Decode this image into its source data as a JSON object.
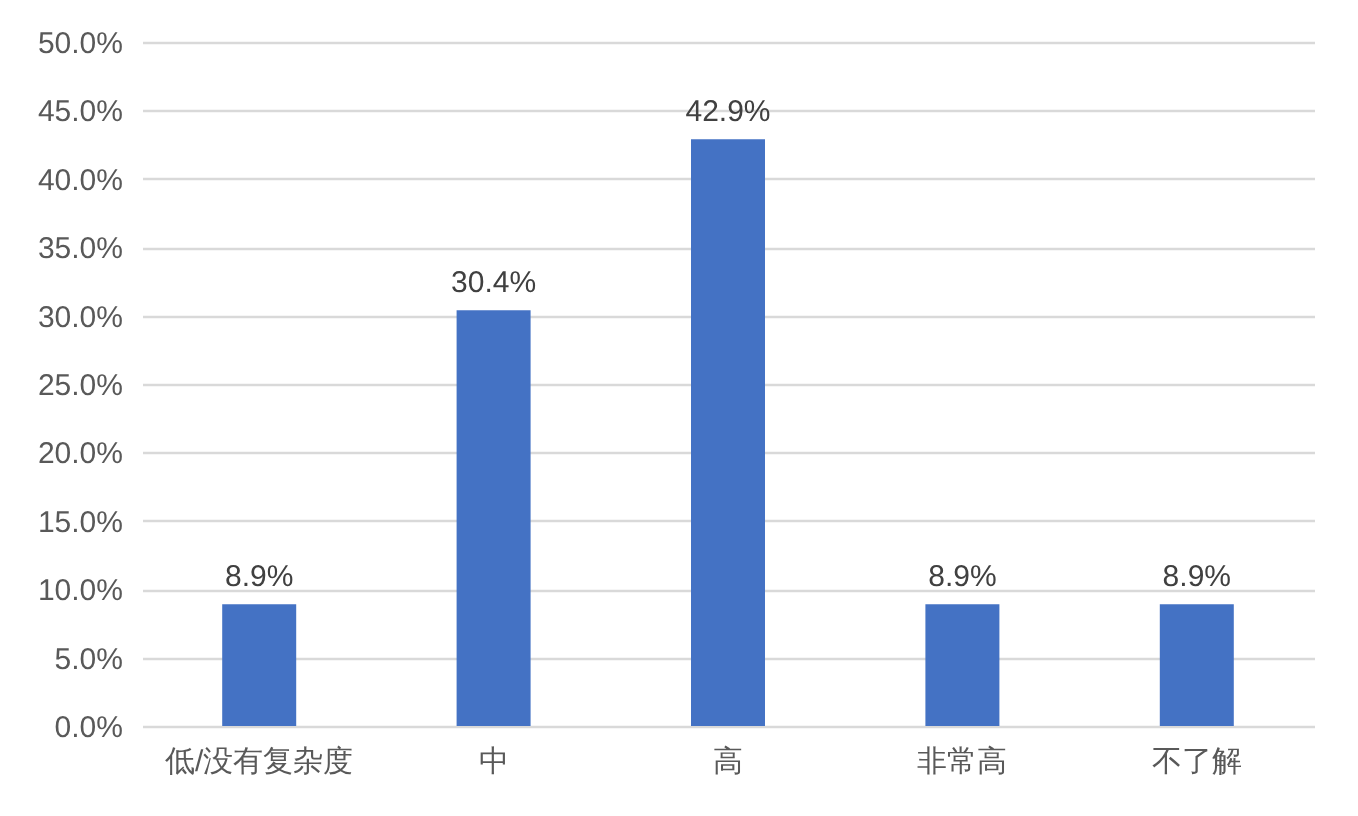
{
  "chart_data": {
    "type": "bar",
    "categories": [
      "低/没有复杂度",
      "中",
      "高",
      "非常高",
      "不了解"
    ],
    "values": [
      8.9,
      30.4,
      42.9,
      8.9,
      8.9
    ],
    "value_labels": [
      "8.9%",
      "30.4%",
      "42.9%",
      "8.9%",
      "8.9%"
    ],
    "color": "#4472c4",
    "ylim": [
      0,
      50
    ],
    "yticks": [
      {
        "value": 0,
        "label": "0.0%"
      },
      {
        "value": 5,
        "label": "5.0%"
      },
      {
        "value": 10,
        "label": "10.0%"
      },
      {
        "value": 15,
        "label": "15.0%"
      },
      {
        "value": 20,
        "label": "20.0%"
      },
      {
        "value": 25,
        "label": "25.0%"
      },
      {
        "value": 30,
        "label": "30.0%"
      },
      {
        "value": 35,
        "label": "35.0%"
      },
      {
        "value": 40,
        "label": "40.0%"
      },
      {
        "value": 45,
        "label": "45.0%"
      },
      {
        "value": 50,
        "label": "50.0%"
      }
    ],
    "grid": "y"
  }
}
